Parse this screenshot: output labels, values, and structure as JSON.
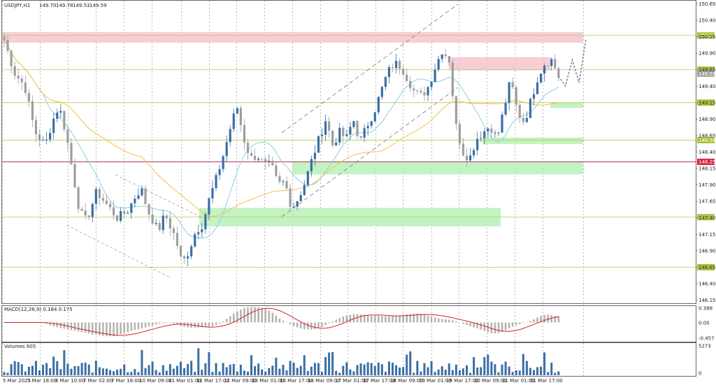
{
  "chart_data": [
    {
      "type": "candlestick",
      "title": "USDJPY,H1",
      "ohlc": {
        "open": "149.70",
        "high": "149.78",
        "low": "149.53",
        "close": "149.59"
      },
      "ylim": [
        146.15,
        150.65
      ],
      "y_ticks": [
        "150.65",
        "150.40",
        "150.15",
        "149.90",
        "149.65",
        "149.40",
        "149.15",
        "148.90",
        "148.65",
        "148.40",
        "148.15",
        "147.90",
        "147.65",
        "147.40",
        "147.15",
        "146.90",
        "146.65",
        "146.40",
        "146.15"
      ],
      "x_ticks": [
        "5 Mar 2025",
        "5 Mar 18:00",
        "6 Mar 10:00",
        "7 Mar 02:00",
        "7 Mar 18:00",
        "10 Mar 09:00",
        "11 Mar 01:00",
        "11 Mar 17:00",
        "12 Mar 09:00",
        "13 Mar 01:00",
        "13 Mar 17:00",
        "14 Mar 09:00",
        "17 Mar 01:00",
        "17 Mar 17:00",
        "18 Mar 09:00",
        "19 Mar 01:00",
        "19 Mar 17:00",
        "20 Mar 09:00",
        "21 Mar 01:00",
        "21 Mar 17:00"
      ],
      "price_path": [
        [
          0,
          150.1
        ],
        [
          3,
          149.6
        ],
        [
          6,
          149.4
        ],
        [
          9,
          148.7
        ],
        [
          12,
          148.5
        ],
        [
          14,
          148.85
        ],
        [
          16,
          149.1
        ],
        [
          18,
          148.7
        ],
        [
          20,
          148.1
        ],
        [
          22,
          147.5
        ],
        [
          24,
          147.35
        ],
        [
          27,
          147.8
        ],
        [
          30,
          147.6
        ],
        [
          33,
          147.4
        ],
        [
          36,
          147.5
        ],
        [
          38,
          147.7
        ],
        [
          40,
          147.85
        ],
        [
          42,
          147.5
        ],
        [
          45,
          147.2
        ],
        [
          47,
          147.45
        ],
        [
          50,
          147.1
        ],
        [
          52,
          146.7
        ],
        [
          54,
          146.9
        ],
        [
          56,
          147.2
        ],
        [
          58,
          147.3
        ],
        [
          60,
          147.7
        ],
        [
          62,
          148.0
        ],
        [
          64,
          148.35
        ],
        [
          66,
          148.75
        ],
        [
          68,
          149.1
        ],
        [
          70,
          148.6
        ],
        [
          72,
          148.3
        ],
        [
          74,
          148.35
        ],
        [
          76,
          148.2
        ],
        [
          78,
          148.2
        ],
        [
          80,
          147.9
        ],
        [
          82,
          147.95
        ],
        [
          84,
          147.55
        ],
        [
          86,
          147.7
        ],
        [
          88,
          147.95
        ],
        [
          90,
          148.3
        ],
        [
          92,
          148.6
        ],
        [
          94,
          148.9
        ],
        [
          96,
          148.5
        ],
        [
          98,
          148.7
        ],
        [
          100,
          148.6
        ],
        [
          102,
          148.9
        ],
        [
          104,
          148.55
        ],
        [
          106,
          148.8
        ],
        [
          108,
          149.0
        ],
        [
          110,
          149.3
        ],
        [
          112,
          149.6
        ],
        [
          114,
          149.75
        ],
        [
          116,
          149.7
        ],
        [
          118,
          149.5
        ],
        [
          120,
          149.3
        ],
        [
          122,
          149.25
        ],
        [
          124,
          149.4
        ],
        [
          126,
          149.7
        ],
        [
          128,
          149.95
        ],
        [
          130,
          149.8
        ],
        [
          132,
          148.8
        ],
        [
          134,
          148.4
        ],
        [
          136,
          148.3
        ],
        [
          138,
          148.6
        ],
        [
          140,
          148.7
        ],
        [
          142,
          148.8
        ],
        [
          144,
          148.6
        ],
        [
          146,
          149.05
        ],
        [
          148,
          149.5
        ],
        [
          150,
          149.0
        ],
        [
          152,
          148.85
        ],
        [
          154,
          149.2
        ],
        [
          156,
          149.55
        ],
        [
          158,
          149.75
        ],
        [
          160,
          149.8
        ],
        [
          162,
          149.55
        ]
      ],
      "forecast_path": [
        [
          162,
          149.55
        ],
        [
          164,
          149.4
        ],
        [
          166,
          149.8
        ],
        [
          168,
          149.45
        ],
        [
          170,
          150.12
        ]
      ],
      "horizontal_levels": [
        {
          "price": "150.17",
          "kind": "resistance-line"
        },
        {
          "price": "149.65",
          "kind": "resistance-line"
        },
        {
          "price": "149.15",
          "kind": "support-line"
        },
        {
          "price": "148.58",
          "kind": "support-line"
        },
        {
          "price": "148.25",
          "kind": "key-level"
        },
        {
          "price": "147.41",
          "kind": "support-line"
        },
        {
          "price": "146.65",
          "kind": "support-line"
        }
      ],
      "current_price": "149.59",
      "zones": [
        {
          "kind": "resistance",
          "top": 150.22,
          "bottom": 150.06
        },
        {
          "kind": "resistance",
          "top": 149.84,
          "bottom": 149.64
        },
        {
          "kind": "support",
          "top": 149.15,
          "bottom": 149.07
        },
        {
          "kind": "support",
          "top": 148.62,
          "bottom": 148.52
        },
        {
          "kind": "support",
          "top": 148.25,
          "bottom": 148.06
        },
        {
          "kind": "support",
          "top": 147.55,
          "bottom": 147.27
        }
      ],
      "colors": {
        "resistance_zone": "#f6c4cf",
        "support_zone": "#b8f0b8",
        "level_line": "#b5cc4e",
        "key_line": "#b0325a",
        "label_green": "#a5c436",
        "label_red": "#d81f3c",
        "label_gray": "#a0a0a0",
        "candle_up": "#3a6ea5",
        "candle_down": "#9e9e9e",
        "ma_fast": "#8ccde8",
        "ma_slow": "#f5c04a",
        "forecast": "#7a8fa6"
      }
    },
    {
      "type": "bar",
      "title": "MACD(12,26,9) 0.184 0.175",
      "y_ticks": [
        "0.388",
        "0.00",
        "-0.457"
      ],
      "colors": {
        "histogram": "#b4b4b4",
        "signal": "#d8202a"
      }
    },
    {
      "type": "bar",
      "title": "Volumes 605",
      "y_ticks": [
        "5273",
        "0"
      ],
      "colors": {
        "bars": "#3a6ea5"
      }
    }
  ]
}
